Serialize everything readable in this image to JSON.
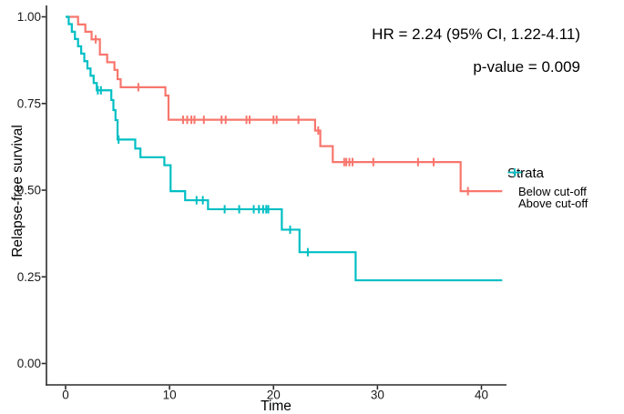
{
  "chart_data": {
    "type": "line",
    "subtype": "kaplan-meier-step-curve",
    "title": "",
    "xlabel": "Time",
    "ylabel": "Relapse-free survival",
    "xlim": [
      0,
      42
    ],
    "ylim": [
      0,
      1
    ],
    "x_ticks": [
      0,
      10,
      20,
      30,
      40
    ],
    "x_tick_labels": [
      "0",
      "10",
      "20",
      "30",
      "40"
    ],
    "y_ticks": [
      0,
      0.25,
      0.5,
      0.75,
      1
    ],
    "y_tick_labels": [
      "0.00",
      "0.25",
      "0.50",
      "0.75",
      "1.00"
    ],
    "grid": false,
    "annotations": [
      "HR = 2.24 (95% CI, 1.22-4.11)",
      "p-value = 0.009"
    ],
    "legend": {
      "title": "Strata",
      "position": "right"
    },
    "series": [
      {
        "name": "Below cut-off",
        "color": "#F8766D",
        "end_time": 42,
        "steps": [
          [
            0,
            1.0
          ],
          [
            1.2,
            0.978
          ],
          [
            1.9,
            0.957
          ],
          [
            2.5,
            0.935
          ],
          [
            3.3,
            0.891
          ],
          [
            4.0,
            0.869
          ],
          [
            4.7,
            0.847
          ],
          [
            5.0,
            0.82
          ],
          [
            5.3,
            0.797
          ],
          [
            9.6,
            0.773
          ],
          [
            9.9,
            0.703
          ],
          [
            24.0,
            0.672
          ],
          [
            24.5,
            0.627
          ],
          [
            25.7,
            0.581
          ],
          [
            38.0,
            0.497
          ]
        ],
        "censors": [
          [
            2.9,
            0.935
          ],
          [
            7.0,
            0.797
          ],
          [
            11.3,
            0.703
          ],
          [
            11.7,
            0.703
          ],
          [
            12.1,
            0.703
          ],
          [
            12.4,
            0.703
          ],
          [
            13.3,
            0.703
          ],
          [
            15.0,
            0.703
          ],
          [
            15.4,
            0.703
          ],
          [
            17.4,
            0.703
          ],
          [
            17.7,
            0.703
          ],
          [
            20.0,
            0.703
          ],
          [
            20.3,
            0.703
          ],
          [
            22.4,
            0.703
          ],
          [
            24.3,
            0.672
          ],
          [
            26.8,
            0.581
          ],
          [
            27.0,
            0.581
          ],
          [
            27.3,
            0.581
          ],
          [
            27.6,
            0.581
          ],
          [
            29.6,
            0.581
          ],
          [
            33.9,
            0.581
          ],
          [
            35.4,
            0.581
          ],
          [
            38.7,
            0.497
          ]
        ]
      },
      {
        "name": "Above cut-off",
        "color": "#00BFC4",
        "end_time": 42,
        "steps": [
          [
            0,
            1.0
          ],
          [
            0.3,
            0.979
          ],
          [
            0.6,
            0.957
          ],
          [
            0.9,
            0.936
          ],
          [
            1.2,
            0.915
          ],
          [
            1.5,
            0.894
          ],
          [
            1.8,
            0.872
          ],
          [
            2.1,
            0.851
          ],
          [
            2.4,
            0.83
          ],
          [
            2.7,
            0.809
          ],
          [
            3.0,
            0.788
          ],
          [
            4.4,
            0.76
          ],
          [
            4.6,
            0.731
          ],
          [
            4.8,
            0.702
          ],
          [
            5.0,
            0.646
          ],
          [
            6.7,
            0.62
          ],
          [
            7.2,
            0.595
          ],
          [
            9.5,
            0.572
          ],
          [
            10.1,
            0.497
          ],
          [
            11.5,
            0.471
          ],
          [
            13.7,
            0.445
          ],
          [
            20.8,
            0.386
          ],
          [
            22.5,
            0.321
          ],
          [
            27.9,
            0.24
          ]
        ],
        "censors": [
          [
            3.1,
            0.788
          ],
          [
            3.4,
            0.788
          ],
          [
            5.1,
            0.646
          ],
          [
            12.6,
            0.471
          ],
          [
            13.2,
            0.471
          ],
          [
            15.3,
            0.445
          ],
          [
            16.7,
            0.445
          ],
          [
            18.1,
            0.445
          ],
          [
            18.6,
            0.445
          ],
          [
            19.0,
            0.445
          ],
          [
            19.3,
            0.445
          ],
          [
            19.5,
            0.445
          ],
          [
            21.6,
            0.386
          ],
          [
            23.3,
            0.321
          ]
        ]
      }
    ]
  }
}
